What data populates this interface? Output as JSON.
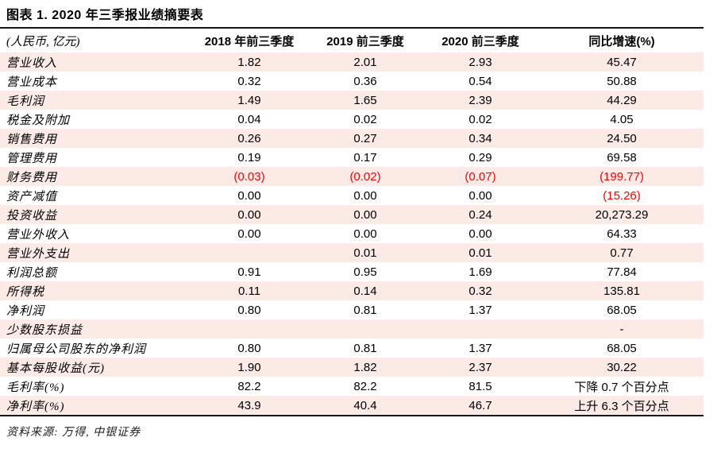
{
  "page_title": "图表 1. 2020 年三季报业绩摘要表",
  "source_note": "资料来源: 万得, 中银证券",
  "colors": {
    "row_stripe": "#fbeae6",
    "negative_value": "#ff0000",
    "rule": "#151515"
  },
  "chart_data": {
    "type": "table",
    "columns": [
      "(人民币, 亿元)",
      "2018 年前三季度",
      "2019 前三季度",
      "2020 前三季度",
      "同比增速(%)"
    ],
    "rows": [
      {
        "label": "营业收入",
        "q2018": "1.82",
        "q2019": "2.01",
        "q2020": "2.93",
        "yoy": "45.47"
      },
      {
        "label": "营业成本",
        "q2018": "0.32",
        "q2019": "0.36",
        "q2020": "0.54",
        "yoy": "50.88"
      },
      {
        "label": "毛利润",
        "q2018": "1.49",
        "q2019": "1.65",
        "q2020": "2.39",
        "yoy": "44.29"
      },
      {
        "label": "税金及附加",
        "q2018": "0.04",
        "q2019": "0.02",
        "q2020": "0.02",
        "yoy": "4.05"
      },
      {
        "label": "销售费用",
        "q2018": "0.26",
        "q2019": "0.27",
        "q2020": "0.34",
        "yoy": "24.50"
      },
      {
        "label": "管理费用",
        "q2018": "0.19",
        "q2019": "0.17",
        "q2020": "0.29",
        "yoy": "69.58"
      },
      {
        "label": "财务费用",
        "q2018": "(0.03)",
        "q2019": "(0.02)",
        "q2020": "(0.07)",
        "yoy": "(199.77)"
      },
      {
        "label": "资产减值",
        "q2018": "0.00",
        "q2019": "0.00",
        "q2020": "0.00",
        "yoy": "(15.26)"
      },
      {
        "label": "投资收益",
        "q2018": "0.00",
        "q2019": "0.00",
        "q2020": "0.24",
        "yoy": "20,273.29"
      },
      {
        "label": "营业外收入",
        "q2018": "0.00",
        "q2019": "0.00",
        "q2020": "0.00",
        "yoy": "64.33"
      },
      {
        "label": "营业外支出",
        "q2018": "",
        "q2019": "0.01",
        "q2020": "0.01",
        "yoy": "0.77"
      },
      {
        "label": "利润总额",
        "q2018": "0.91",
        "q2019": "0.95",
        "q2020": "1.69",
        "yoy": "77.84"
      },
      {
        "label": "所得税",
        "q2018": "0.11",
        "q2019": "0.14",
        "q2020": "0.32",
        "yoy": "135.81"
      },
      {
        "label": "净利润",
        "q2018": "0.80",
        "q2019": "0.81",
        "q2020": "1.37",
        "yoy": "68.05"
      },
      {
        "label": "少数股东损益",
        "q2018": "",
        "q2019": "",
        "q2020": "",
        "yoy": "-"
      },
      {
        "label": "归属母公司股东的净利润",
        "q2018": "0.80",
        "q2019": "0.81",
        "q2020": "1.37",
        "yoy": "68.05"
      },
      {
        "label": "基本每股收益(元)",
        "q2018": "1.90",
        "q2019": "1.82",
        "q2020": "2.37",
        "yoy": "30.22"
      },
      {
        "label": "毛利率(%)",
        "q2018": "82.2",
        "q2019": "82.2",
        "q2020": "81.5",
        "yoy": "下降 0.7 个百分点"
      },
      {
        "label": "净利率(%)",
        "q2018": "43.9",
        "q2019": "40.4",
        "q2020": "46.7",
        "yoy": "上升 6.3 个百分点"
      }
    ]
  }
}
